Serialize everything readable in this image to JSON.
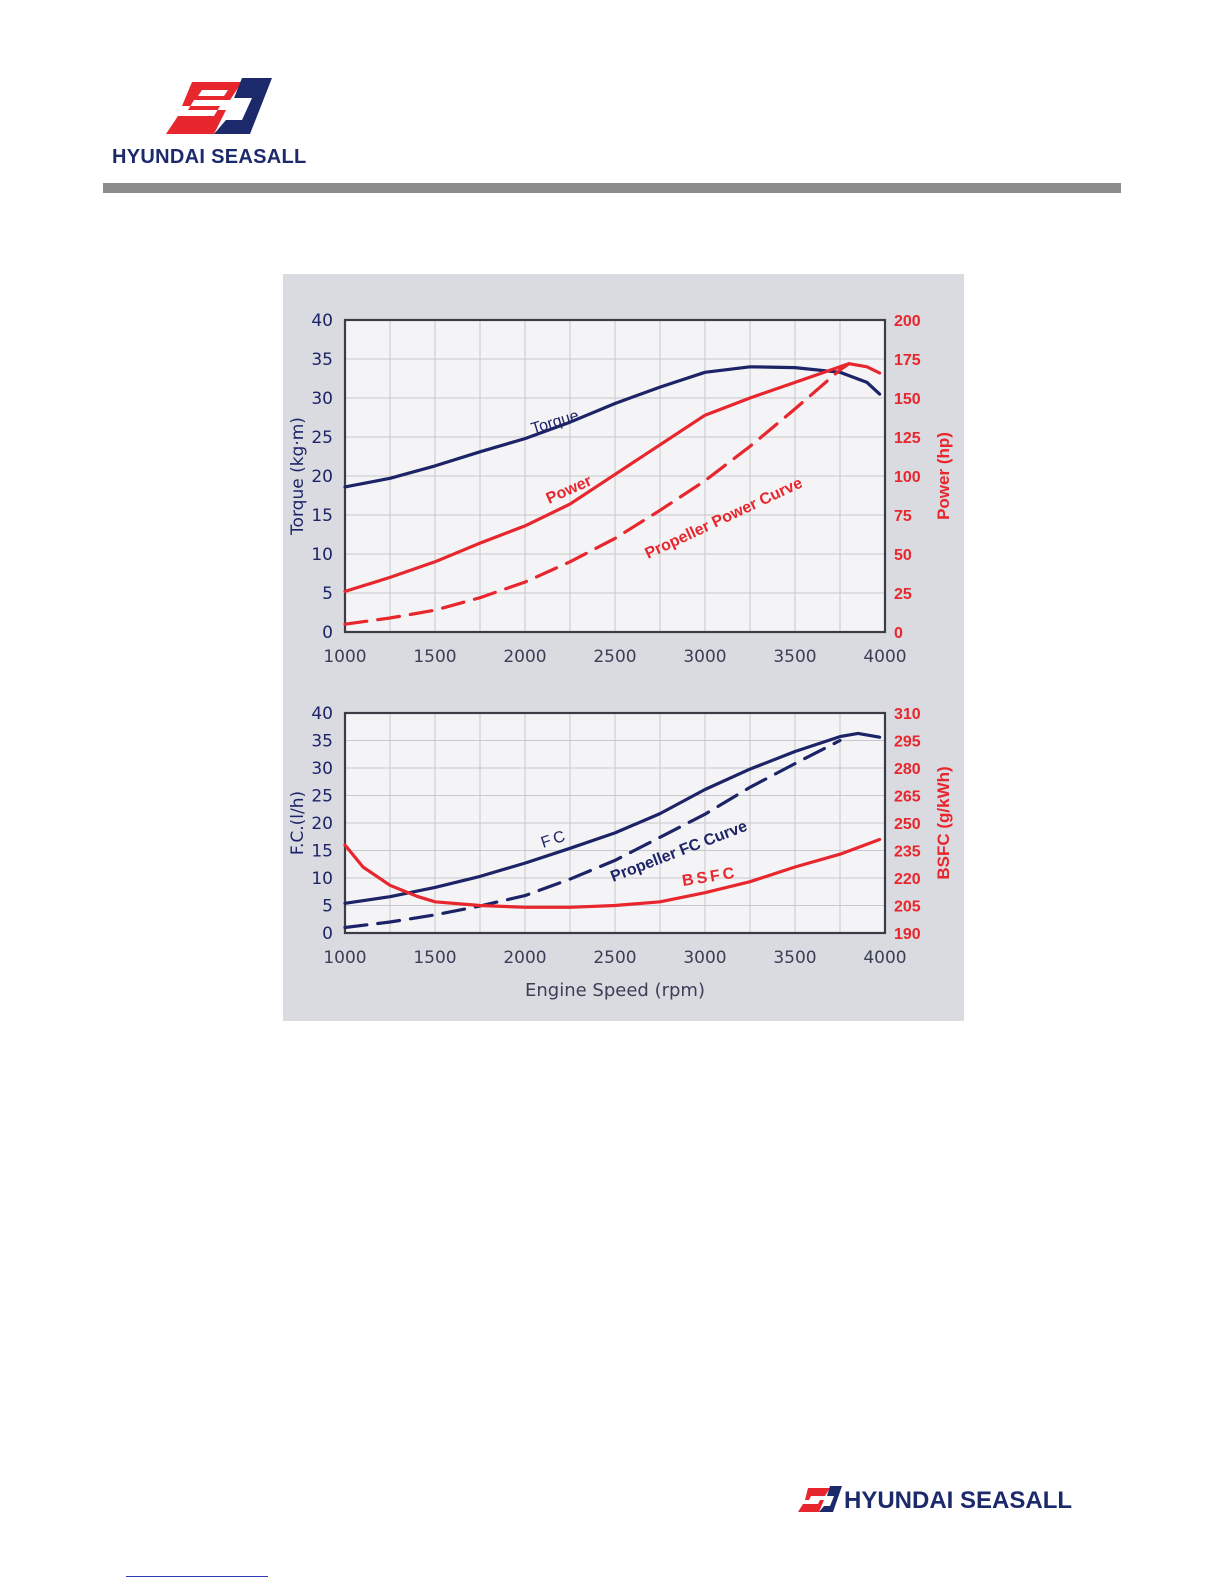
{
  "header": {
    "brand": "HYUNDAI SEASALL",
    "logo_icon": "hyundai-seasall-logo-icon"
  },
  "footer": {
    "brand": "HYUNDAI SEASALL",
    "logo_icon": "hyundai-seasall-logo-icon"
  },
  "colors": {
    "navy": "#1c2467",
    "red": "#e8262d",
    "panel_bg": "#d9dbe0",
    "plot_bg": "#f4f4f6",
    "grid": "#c8c9cc",
    "rule": "#8c8c8c"
  },
  "chart_data": [
    {
      "type": "line",
      "title": "",
      "xlabel": "",
      "ylabel": "Torque (kg·m)",
      "y2label": "Power (hp)",
      "xlim": [
        1000,
        4000
      ],
      "ylim": [
        0,
        40
      ],
      "y2lim": [
        0,
        200
      ],
      "xticks": [
        "1000",
        "1500",
        "2000",
        "2500",
        "3000",
        "3500",
        "4000"
      ],
      "yticks": [
        "0",
        "5",
        "10",
        "15",
        "20",
        "25",
        "30",
        "35",
        "40"
      ],
      "y2ticks": [
        "0",
        "25",
        "50",
        "75",
        "100",
        "125",
        "150",
        "175",
        "200"
      ],
      "grid": true,
      "series": [
        {
          "name": "Torque",
          "axis": "left",
          "color": "#1c2467",
          "dash": false,
          "x": [
            1000,
            1250,
            1500,
            1750,
            2000,
            2250,
            2500,
            2750,
            3000,
            3250,
            3500,
            3750,
            3900,
            3970
          ],
          "y": [
            18.6,
            19.7,
            21.3,
            23.1,
            24.8,
            26.9,
            29.3,
            31.4,
            33.3,
            34.0,
            33.9,
            33.3,
            32.0,
            30.5
          ]
        },
        {
          "name": "Power",
          "axis": "right",
          "color": "#e8262d",
          "dash": false,
          "x": [
            1000,
            1250,
            1500,
            1750,
            2000,
            2250,
            2500,
            2750,
            3000,
            3250,
            3500,
            3750,
            3800,
            3900,
            3970
          ],
          "y": [
            26,
            35,
            45,
            57,
            68,
            82,
            101,
            120,
            139,
            150,
            160,
            170,
            172,
            170,
            166
          ]
        },
        {
          "name": "Propeller Power Curve",
          "axis": "right",
          "color": "#e8262d",
          "dash": true,
          "x": [
            1000,
            1250,
            1500,
            1750,
            2000,
            2250,
            2500,
            2750,
            3000,
            3250,
            3500,
            3750,
            3800
          ],
          "y": [
            5,
            9,
            14,
            22,
            32,
            45,
            60,
            78,
            97,
            119,
            143,
            168,
            172
          ]
        }
      ]
    },
    {
      "type": "line",
      "title": "",
      "xlabel": "Engine Speed (rpm)",
      "ylabel": "F.C.(l/h)",
      "y2label": "BSFC (g/kWh)",
      "xlim": [
        1000,
        4000
      ],
      "ylim": [
        0,
        40
      ],
      "y2lim": [
        190,
        310
      ],
      "xticks": [
        "1000",
        "1500",
        "2000",
        "2500",
        "3000",
        "3500",
        "4000"
      ],
      "yticks": [
        "0",
        "5",
        "10",
        "15",
        "20",
        "25",
        "30",
        "35",
        "40"
      ],
      "y2ticks": [
        "190",
        "205",
        "220",
        "235",
        "250",
        "265",
        "280",
        "295",
        "310"
      ],
      "grid": true,
      "series": [
        {
          "name": "FC",
          "axis": "left",
          "color": "#1c2467",
          "dash": false,
          "x": [
            1000,
            1250,
            1500,
            1750,
            2000,
            2250,
            2500,
            2750,
            3000,
            3250,
            3500,
            3750,
            3850,
            3970
          ],
          "y": [
            5.4,
            6.6,
            8.3,
            10.3,
            12.7,
            15.4,
            18.2,
            21.7,
            26.1,
            29.8,
            33.0,
            35.7,
            36.3,
            35.6
          ]
        },
        {
          "name": "Propeller FC Curve",
          "axis": "left",
          "color": "#1c2467",
          "dash": true,
          "x": [
            1000,
            1250,
            1500,
            1750,
            2000,
            2250,
            2500,
            2750,
            3000,
            3250,
            3500,
            3750
          ],
          "y": [
            1.0,
            2.0,
            3.3,
            4.9,
            6.8,
            9.8,
            13.2,
            17.4,
            21.6,
            26.5,
            30.8,
            35.0
          ]
        },
        {
          "name": "BSFC",
          "axis": "right",
          "color": "#e8262d",
          "dash": false,
          "x": [
            1000,
            1100,
            1250,
            1400,
            1500,
            1750,
            2000,
            2250,
            2500,
            2750,
            3000,
            3250,
            3500,
            3750,
            3970
          ],
          "y": [
            238,
            226,
            216,
            210,
            207,
            205,
            204,
            204,
            205,
            207,
            212,
            218,
            226,
            233,
            241
          ]
        }
      ]
    }
  ]
}
